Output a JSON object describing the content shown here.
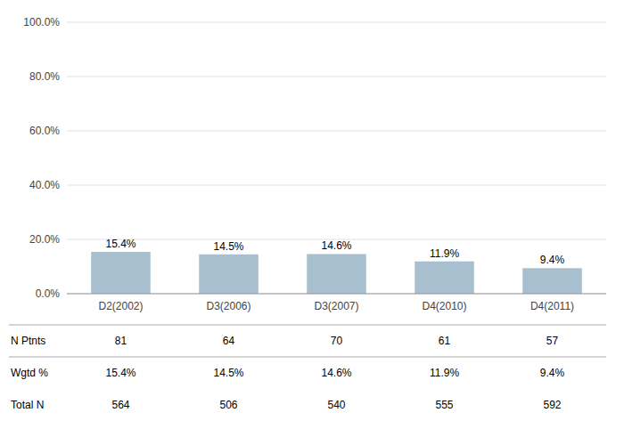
{
  "chart_data": {
    "type": "bar",
    "categories": [
      "D2(2002)",
      "D3(2006)",
      "D3(2007)",
      "D4(2010)",
      "D4(2011)"
    ],
    "values": [
      15.4,
      14.5,
      14.6,
      11.9,
      9.4
    ],
    "value_labels": [
      "15.4%",
      "14.5%",
      "14.6%",
      "11.9%",
      "9.4%"
    ],
    "data_labels": true,
    "color": "#a8bfcf",
    "ylim": [
      0,
      100
    ],
    "yticks": [
      {
        "value": 0,
        "label": "0.0%"
      },
      {
        "value": 20,
        "label": "20.0%"
      },
      {
        "value": 40,
        "label": "40.0%"
      },
      {
        "value": 60,
        "label": "60.0%"
      },
      {
        "value": 80,
        "label": "80.0%"
      },
      {
        "value": 100,
        "label": "100.0%"
      }
    ],
    "grid": true,
    "table": [
      {
        "label": "N Ptnts",
        "values": [
          81,
          64,
          70,
          61,
          57
        ]
      },
      {
        "label": "Wgtd %",
        "values": [
          15.4,
          14.5,
          14.6,
          11.9,
          9.4
        ],
        "value_labels": [
          "15.4%",
          "14.5%",
          "14.6%",
          "11.9%",
          "9.4%"
        ]
      },
      {
        "label": "Total N",
        "values": [
          564,
          506,
          540,
          555,
          592
        ]
      }
    ]
  }
}
